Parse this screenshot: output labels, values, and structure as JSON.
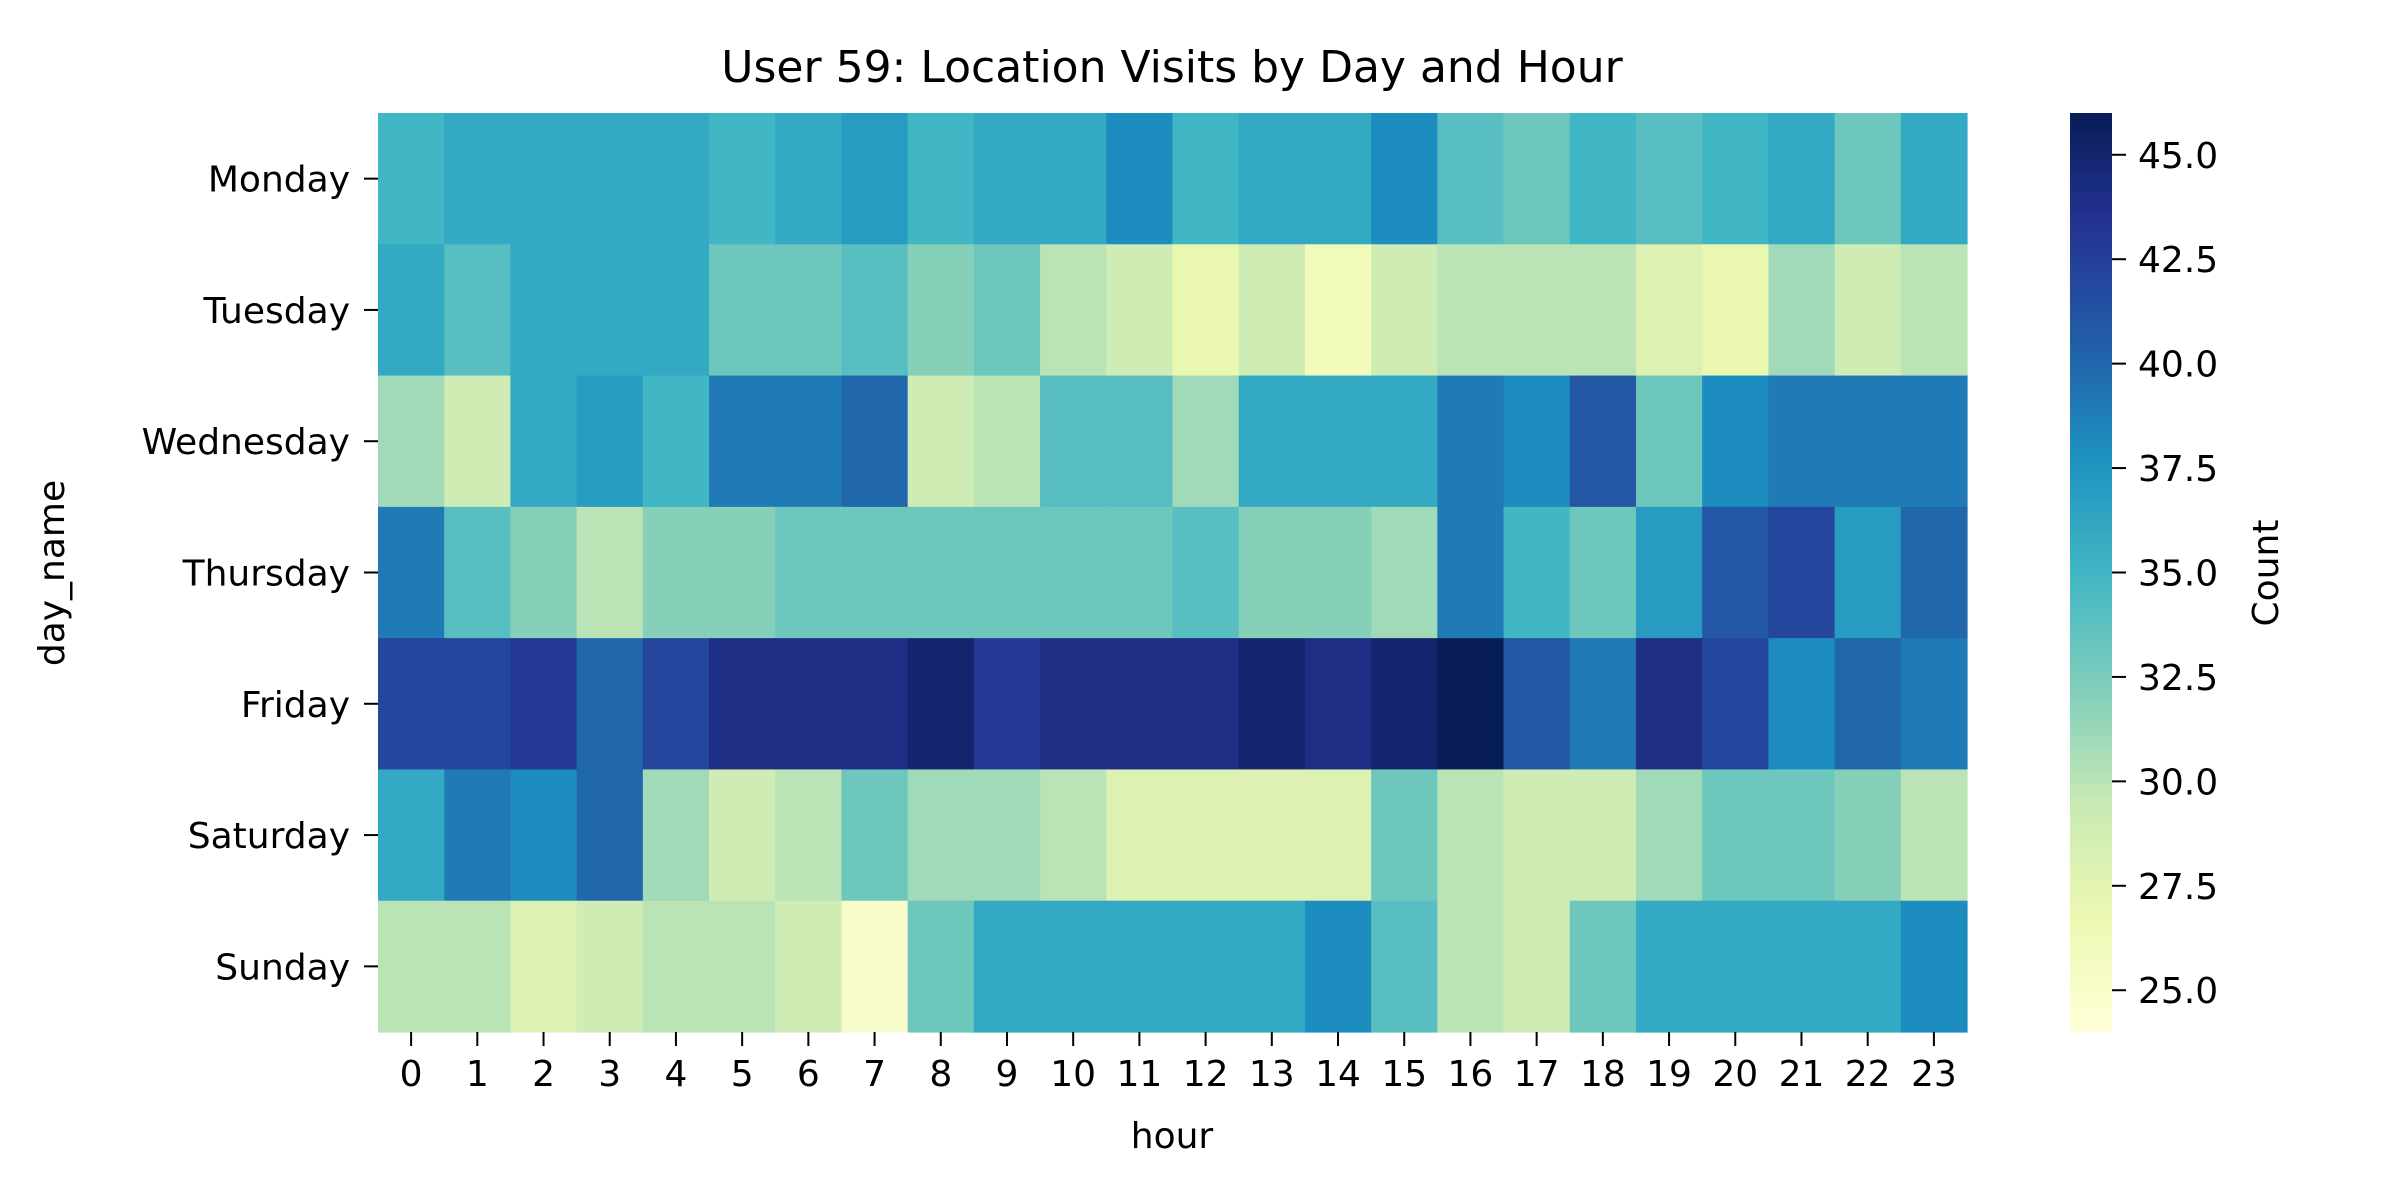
{
  "chart_data": {
    "type": "heatmap",
    "title": "User 59: Location Visits by Day and Hour",
    "xlabel": "hour",
    "ylabel": "day_name",
    "x_categories": [
      "0",
      "1",
      "2",
      "3",
      "4",
      "5",
      "6",
      "7",
      "8",
      "9",
      "10",
      "11",
      "12",
      "13",
      "14",
      "15",
      "16",
      "17",
      "18",
      "19",
      "20",
      "21",
      "22",
      "23"
    ],
    "y_categories": [
      "Monday",
      "Tuesday",
      "Wednesday",
      "Thursday",
      "Friday",
      "Saturday",
      "Sunday"
    ],
    "values": [
      [
        35,
        36,
        36,
        36,
        36,
        35,
        36,
        37,
        35,
        36,
        36,
        38,
        35,
        36,
        36,
        38,
        34,
        33,
        35,
        34,
        35,
        36,
        33,
        36
      ],
      [
        36,
        34,
        36,
        36,
        36,
        33,
        33,
        34,
        32,
        33,
        30,
        29,
        27,
        29,
        26,
        29,
        30,
        30,
        30,
        28,
        27,
        31,
        29,
        30
      ],
      [
        31,
        29,
        36,
        37,
        35,
        39,
        39,
        40,
        29,
        30,
        34,
        34,
        31,
        36,
        36,
        36,
        39,
        38,
        41,
        33,
        38,
        39,
        39,
        39
      ],
      [
        39,
        34,
        32,
        30,
        32,
        32,
        33,
        33,
        33,
        33,
        33,
        33,
        34,
        32,
        32,
        31,
        39,
        35,
        33,
        37,
        41,
        42,
        37,
        40
      ],
      [
        42,
        42,
        43,
        40,
        42,
        44,
        44,
        44,
        45,
        43,
        44,
        44,
        44,
        45,
        44,
        45,
        46,
        41,
        39,
        44,
        42,
        38,
        40,
        39
      ],
      [
        36,
        39,
        38,
        40,
        31,
        29,
        30,
        33,
        31,
        31,
        30,
        28,
        28,
        28,
        28,
        33,
        30,
        29,
        29,
        31,
        33,
        33,
        32,
        30
      ],
      [
        30,
        30,
        28,
        29,
        30,
        30,
        29,
        25,
        33,
        36,
        36,
        36,
        36,
        36,
        38,
        34,
        30,
        29,
        33,
        36,
        36,
        36,
        36,
        38
      ]
    ],
    "vmin": 24,
    "vmax": 46,
    "colormap": "YlGnBu",
    "colorbar": {
      "label": "Count",
      "ticks": [
        25.0,
        27.5,
        30.0,
        32.5,
        35.0,
        37.5,
        40.0,
        42.5,
        45.0
      ],
      "tick_labels": [
        "25.0",
        "27.5",
        "30.0",
        "32.5",
        "35.0",
        "37.5",
        "40.0",
        "42.5",
        "45.0"
      ]
    },
    "grid": false,
    "legend": "colorbar-right"
  }
}
